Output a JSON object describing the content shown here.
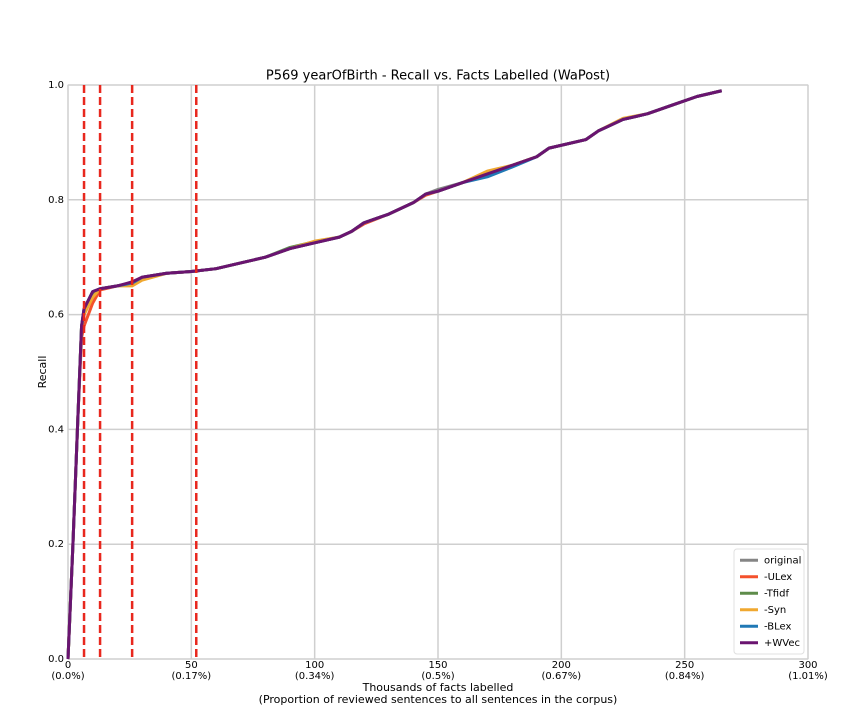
{
  "chart_data": {
    "type": "line",
    "title": "P569 yearOfBirth - Recall vs. Facts Labelled (WaPost)",
    "x_label": "Thousands of facts labelled",
    "x_label_note": "(Proportion of reviewed sentences to all sentences in the corpus)",
    "y_label": "Recall",
    "xlim": [
      0,
      300
    ],
    "ylim": [
      0,
      1
    ],
    "xticks": [
      0,
      50,
      100,
      150,
      200,
      250,
      300
    ],
    "xtick_notes": [
      "(0.0%)",
      "(0.17%)",
      "(0.34%)",
      "(0.5%)",
      "(0.67%)",
      "(0.84%)",
      "(1.01%)"
    ],
    "yticks": [
      {
        "value": 0,
        "label": "0.0"
      },
      {
        "value": 0.2,
        "label": "0.2"
      },
      {
        "value": 0.4,
        "label": "0.4"
      },
      {
        "value": 0.6,
        "label": "0.6"
      },
      {
        "value": 0.8,
        "label": "0.8"
      },
      {
        "value": 1,
        "label": "1.0"
      }
    ],
    "grid": true,
    "legend": "lower right",
    "vlines": {
      "values": [
        6.5,
        13,
        26,
        52
      ],
      "color": "#e8281e"
    },
    "x": [
      0,
      2,
      4,
      5.5,
      6.5,
      10,
      13,
      20,
      26,
      30,
      40,
      50,
      60,
      70,
      80,
      90,
      100,
      110,
      115,
      120,
      130,
      140,
      145,
      150,
      160,
      170,
      180,
      190,
      195,
      210,
      215,
      225,
      235,
      245,
      255,
      265
    ],
    "series": [
      {
        "name": "original",
        "color": "#858585",
        "values": [
          0,
          0.2,
          0.42,
          0.58,
          0.61,
          0.64,
          0.645,
          0.65,
          0.655,
          0.665,
          0.672,
          0.675,
          0.68,
          0.69,
          0.7,
          0.715,
          0.725,
          0.735,
          0.745,
          0.76,
          0.775,
          0.795,
          0.81,
          0.818,
          0.83,
          0.845,
          0.86,
          0.875,
          0.89,
          0.905,
          0.92,
          0.94,
          0.95,
          0.965,
          0.98,
          0.99
        ]
      },
      {
        "name": "-ULex",
        "color": "#f4512c",
        "values": [
          0,
          0.2,
          0.42,
          0.56,
          0.58,
          0.62,
          0.643,
          0.65,
          0.655,
          0.665,
          0.672,
          0.675,
          0.68,
          0.69,
          0.7,
          0.715,
          0.725,
          0.735,
          0.745,
          0.758,
          0.775,
          0.795,
          0.808,
          0.815,
          0.83,
          0.845,
          0.86,
          0.875,
          0.89,
          0.905,
          0.92,
          0.94,
          0.95,
          0.965,
          0.98,
          0.99
        ]
      },
      {
        "name": "-Tfidf",
        "color": "#5e8c4a",
        "values": [
          0,
          0.2,
          0.42,
          0.58,
          0.6,
          0.635,
          0.645,
          0.65,
          0.652,
          0.663,
          0.672,
          0.675,
          0.68,
          0.69,
          0.7,
          0.717,
          0.727,
          0.735,
          0.745,
          0.76,
          0.775,
          0.795,
          0.81,
          0.815,
          0.83,
          0.843,
          0.86,
          0.875,
          0.89,
          0.905,
          0.92,
          0.94,
          0.95,
          0.965,
          0.98,
          0.99
        ]
      },
      {
        "name": "-Syn",
        "color": "#f0a830",
        "values": [
          0,
          0.2,
          0.42,
          0.58,
          0.6,
          0.63,
          0.645,
          0.65,
          0.65,
          0.66,
          0.672,
          0.675,
          0.68,
          0.69,
          0.7,
          0.715,
          0.728,
          0.735,
          0.745,
          0.76,
          0.775,
          0.795,
          0.81,
          0.815,
          0.83,
          0.85,
          0.86,
          0.875,
          0.89,
          0.905,
          0.92,
          0.942,
          0.95,
          0.965,
          0.98,
          0.99
        ]
      },
      {
        "name": "-BLex",
        "color": "#2079b5",
        "values": [
          0,
          0.2,
          0.42,
          0.58,
          0.61,
          0.64,
          0.645,
          0.65,
          0.655,
          0.665,
          0.672,
          0.675,
          0.68,
          0.69,
          0.7,
          0.715,
          0.725,
          0.735,
          0.745,
          0.76,
          0.775,
          0.795,
          0.81,
          0.815,
          0.83,
          0.84,
          0.857,
          0.875,
          0.89,
          0.905,
          0.92,
          0.94,
          0.95,
          0.965,
          0.98,
          0.99
        ]
      },
      {
        "name": "+WVec",
        "color": "#6a1470",
        "values": [
          0,
          0.2,
          0.42,
          0.58,
          0.61,
          0.64,
          0.645,
          0.65,
          0.657,
          0.665,
          0.672,
          0.675,
          0.68,
          0.69,
          0.7,
          0.715,
          0.725,
          0.735,
          0.745,
          0.76,
          0.775,
          0.795,
          0.81,
          0.815,
          0.83,
          0.845,
          0.86,
          0.875,
          0.89,
          0.905,
          0.92,
          0.94,
          0.95,
          0.965,
          0.98,
          0.99
        ]
      }
    ]
  }
}
